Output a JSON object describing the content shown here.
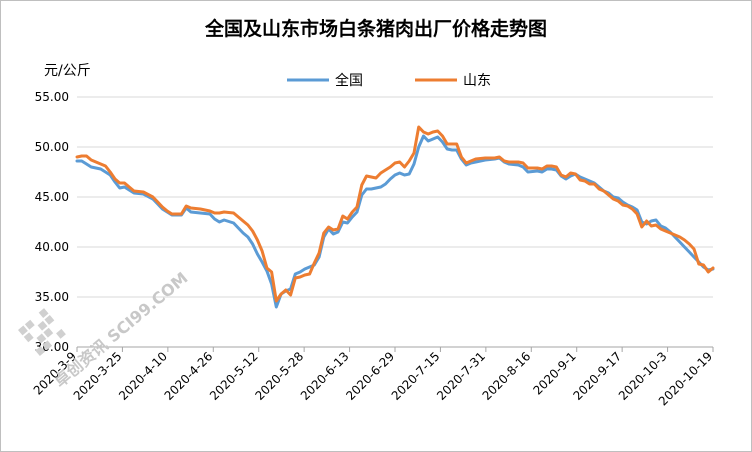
{
  "chart_data": {
    "type": "line",
    "title": "全国及山东市场白条猪肉出厂价格走势图",
    "ylabel": "元/公斤",
    "xlabel": "",
    "ylim": [
      30,
      55
    ],
    "yticks": [
      "30.00",
      "35.00",
      "40.00",
      "45.00",
      "50.00",
      "55.00"
    ],
    "x_tick_labels": [
      "2020-3-9",
      "2020-3-25",
      "2020-4-10",
      "2020-4-26",
      "2020-5-12",
      "2020-5-28",
      "2020-6-13",
      "2020-6-29",
      "2020-7-15",
      "2020-7-31",
      "2020-8-16",
      "2020-9-1",
      "2020-9-17",
      "2020-10-3",
      "2020-10-19"
    ],
    "legend_position": "top",
    "grid": "horizontal",
    "series": [
      {
        "name": "全国",
        "color": "#5b9bd5",
        "points": [
          [
            0,
            48.6
          ],
          [
            1,
            48.6
          ],
          [
            2,
            48.3
          ],
          [
            3,
            48.0
          ],
          [
            5,
            47.8
          ],
          [
            6,
            47.5
          ],
          [
            7,
            47.2
          ],
          [
            8,
            46.5
          ],
          [
            9,
            45.9
          ],
          [
            10,
            46.0
          ],
          [
            11,
            45.7
          ],
          [
            12,
            45.4
          ],
          [
            14,
            45.3
          ],
          [
            16,
            44.8
          ],
          [
            17,
            44.3
          ],
          [
            18,
            43.8
          ],
          [
            19,
            43.5
          ],
          [
            20,
            43.2
          ],
          [
            22,
            43.2
          ],
          [
            23,
            43.9
          ],
          [
            24,
            43.5
          ],
          [
            26,
            43.4
          ],
          [
            28,
            43.3
          ],
          [
            29,
            42.8
          ],
          [
            30,
            42.5
          ],
          [
            31,
            42.7
          ],
          [
            33,
            42.4
          ],
          [
            35,
            41.4
          ],
          [
            36,
            41.0
          ],
          [
            37,
            40.3
          ],
          [
            38,
            39.3
          ],
          [
            39,
            38.5
          ],
          [
            40,
            37.6
          ],
          [
            41,
            36.3
          ],
          [
            42,
            34.0
          ],
          [
            43,
            35.3
          ],
          [
            44,
            35.6
          ],
          [
            45,
            35.8
          ],
          [
            46,
            37.3
          ],
          [
            47,
            37.5
          ],
          [
            48,
            37.8
          ],
          [
            49,
            38.0
          ],
          [
            50,
            38.2
          ],
          [
            51,
            39.0
          ],
          [
            52,
            41.0
          ],
          [
            53,
            41.8
          ],
          [
            54,
            41.3
          ],
          [
            55,
            41.5
          ],
          [
            56,
            42.5
          ],
          [
            57,
            42.4
          ],
          [
            58,
            43.0
          ],
          [
            59,
            43.5
          ],
          [
            60,
            45.2
          ],
          [
            61,
            45.8
          ],
          [
            62,
            45.8
          ],
          [
            63,
            45.9
          ],
          [
            64,
            46.0
          ],
          [
            65,
            46.3
          ],
          [
            66,
            46.8
          ],
          [
            67,
            47.2
          ],
          [
            68,
            47.4
          ],
          [
            69,
            47.2
          ],
          [
            70,
            47.3
          ],
          [
            71,
            48.3
          ],
          [
            72,
            50.0
          ],
          [
            73,
            51.1
          ],
          [
            74,
            50.6
          ],
          [
            75,
            50.8
          ],
          [
            76,
            51.0
          ],
          [
            77,
            50.5
          ],
          [
            78,
            49.8
          ],
          [
            79,
            49.7
          ],
          [
            80,
            49.7
          ],
          [
            81,
            48.8
          ],
          [
            82,
            48.2
          ],
          [
            83,
            48.4
          ],
          [
            84,
            48.5
          ],
          [
            86,
            48.7
          ],
          [
            88,
            48.8
          ],
          [
            89,
            48.9
          ],
          [
            90,
            48.5
          ],
          [
            91,
            48.3
          ],
          [
            93,
            48.2
          ],
          [
            94,
            48.0
          ],
          [
            95,
            47.5
          ],
          [
            97,
            47.6
          ],
          [
            98,
            47.5
          ],
          [
            99,
            47.8
          ],
          [
            100,
            47.8
          ],
          [
            101,
            47.7
          ],
          [
            102,
            47.1
          ],
          [
            103,
            46.8
          ],
          [
            104,
            47.1
          ],
          [
            105,
            47.3
          ],
          [
            106,
            47.0
          ],
          [
            107,
            46.8
          ],
          [
            108,
            46.6
          ],
          [
            109,
            46.4
          ],
          [
            110,
            46.0
          ],
          [
            111,
            45.6
          ],
          [
            112,
            45.4
          ],
          [
            113,
            45.0
          ],
          [
            114,
            44.9
          ],
          [
            115,
            44.5
          ],
          [
            116,
            44.2
          ],
          [
            117,
            44.0
          ],
          [
            118,
            43.7
          ],
          [
            119,
            42.5
          ],
          [
            120,
            42.3
          ],
          [
            121,
            42.6
          ],
          [
            122,
            42.7
          ],
          [
            123,
            42.1
          ],
          [
            124,
            41.9
          ],
          [
            125,
            41.5
          ],
          [
            126,
            41.0
          ],
          [
            127,
            40.5
          ],
          [
            128,
            40.0
          ],
          [
            129,
            39.5
          ],
          [
            130,
            39.0
          ],
          [
            131,
            38.5
          ],
          [
            132,
            38.0
          ],
          [
            133,
            37.7
          ],
          [
            134,
            37.8
          ]
        ]
      },
      {
        "name": "山东",
        "color": "#ed7d31",
        "points": [
          [
            0,
            49.0
          ],
          [
            1,
            49.1
          ],
          [
            2,
            49.1
          ],
          [
            3,
            48.7
          ],
          [
            5,
            48.3
          ],
          [
            6,
            48.1
          ],
          [
            7,
            47.5
          ],
          [
            8,
            46.8
          ],
          [
            9,
            46.4
          ],
          [
            10,
            46.4
          ],
          [
            11,
            46.0
          ],
          [
            12,
            45.6
          ],
          [
            14,
            45.5
          ],
          [
            16,
            45.0
          ],
          [
            17,
            44.5
          ],
          [
            18,
            44.0
          ],
          [
            19,
            43.6
          ],
          [
            20,
            43.3
          ],
          [
            22,
            43.3
          ],
          [
            23,
            44.1
          ],
          [
            24,
            43.9
          ],
          [
            26,
            43.8
          ],
          [
            28,
            43.6
          ],
          [
            29,
            43.4
          ],
          [
            30,
            43.4
          ],
          [
            31,
            43.5
          ],
          [
            33,
            43.4
          ],
          [
            35,
            42.6
          ],
          [
            36,
            42.2
          ],
          [
            37,
            41.6
          ],
          [
            38,
            40.7
          ],
          [
            39,
            39.6
          ],
          [
            40,
            37.9
          ],
          [
            41,
            37.5
          ],
          [
            42,
            34.6
          ],
          [
            43,
            35.3
          ],
          [
            44,
            35.7
          ],
          [
            45,
            35.2
          ],
          [
            46,
            36.9
          ],
          [
            47,
            37.0
          ],
          [
            48,
            37.2
          ],
          [
            49,
            37.3
          ],
          [
            50,
            38.4
          ],
          [
            51,
            39.4
          ],
          [
            52,
            41.4
          ],
          [
            53,
            42.0
          ],
          [
            54,
            41.7
          ],
          [
            55,
            41.8
          ],
          [
            56,
            43.1
          ],
          [
            57,
            42.8
          ],
          [
            58,
            43.5
          ],
          [
            59,
            44.0
          ],
          [
            60,
            46.2
          ],
          [
            61,
            47.1
          ],
          [
            62,
            47.0
          ],
          [
            63,
            46.9
          ],
          [
            64,
            47.4
          ],
          [
            65,
            47.7
          ],
          [
            66,
            48.0
          ],
          [
            67,
            48.4
          ],
          [
            68,
            48.5
          ],
          [
            69,
            48.0
          ],
          [
            70,
            48.6
          ],
          [
            71,
            49.4
          ],
          [
            72,
            52.0
          ],
          [
            73,
            51.5
          ],
          [
            74,
            51.3
          ],
          [
            75,
            51.5
          ],
          [
            76,
            51.6
          ],
          [
            77,
            51.1
          ],
          [
            78,
            50.3
          ],
          [
            79,
            50.3
          ],
          [
            80,
            50.3
          ],
          [
            81,
            49.0
          ],
          [
            82,
            48.4
          ],
          [
            83,
            48.6
          ],
          [
            84,
            48.8
          ],
          [
            86,
            48.9
          ],
          [
            88,
            48.9
          ],
          [
            89,
            49.0
          ],
          [
            90,
            48.6
          ],
          [
            91,
            48.5
          ],
          [
            93,
            48.5
          ],
          [
            94,
            48.4
          ],
          [
            95,
            47.9
          ],
          [
            97,
            47.9
          ],
          [
            98,
            47.8
          ],
          [
            99,
            48.1
          ],
          [
            100,
            48.1
          ],
          [
            101,
            48.0
          ],
          [
            102,
            47.2
          ],
          [
            103,
            47.0
          ],
          [
            104,
            47.4
          ],
          [
            105,
            47.3
          ],
          [
            106,
            46.7
          ],
          [
            107,
            46.6
          ],
          [
            108,
            46.3
          ],
          [
            109,
            46.3
          ],
          [
            110,
            45.8
          ],
          [
            111,
            45.6
          ],
          [
            112,
            45.2
          ],
          [
            113,
            44.8
          ],
          [
            114,
            44.6
          ],
          [
            115,
            44.2
          ],
          [
            116,
            44.1
          ],
          [
            117,
            43.8
          ],
          [
            118,
            43.3
          ],
          [
            119,
            42.0
          ],
          [
            120,
            42.6
          ],
          [
            121,
            42.1
          ],
          [
            122,
            42.2
          ],
          [
            123,
            41.8
          ],
          [
            124,
            41.6
          ],
          [
            125,
            41.4
          ],
          [
            126,
            41.2
          ],
          [
            127,
            41.0
          ],
          [
            128,
            40.7
          ],
          [
            129,
            40.3
          ],
          [
            130,
            39.8
          ],
          [
            131,
            38.3
          ],
          [
            132,
            38.2
          ],
          [
            133,
            37.5
          ],
          [
            134,
            37.9
          ]
        ]
      }
    ]
  },
  "watermark": "卓创资讯 SCI99.COM"
}
